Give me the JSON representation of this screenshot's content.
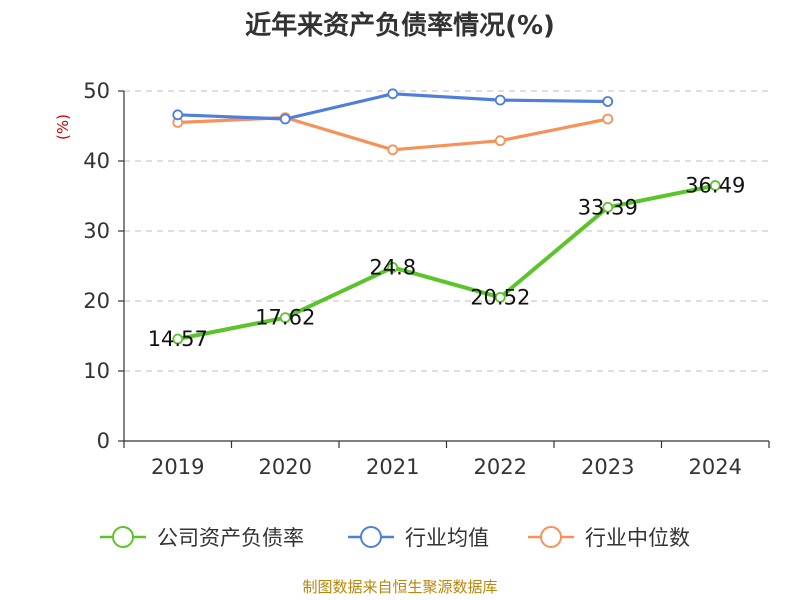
{
  "chart_data": {
    "type": "line",
    "title": "近年来资产负债率情况(%)",
    "ylabel": "(%)",
    "ylim": [
      0,
      50
    ],
    "yticks": [
      0,
      10,
      20,
      30,
      40,
      50
    ],
    "grid": true,
    "legend_position": "bottom",
    "categories": [
      "2019",
      "2020",
      "2021",
      "2022",
      "2023",
      "2024"
    ],
    "series": [
      {
        "name": "公司资产负债率",
        "color": "#5cc42b",
        "values": [
          14.57,
          17.62,
          24.8,
          20.52,
          33.39,
          36.49
        ],
        "show_labels": true
      },
      {
        "name": "行业均值",
        "color": "#4f7fdc",
        "values": [
          46.6,
          46.0,
          49.6,
          48.7,
          48.5,
          null
        ],
        "show_labels": false
      },
      {
        "name": "行业中位数",
        "color": "#f79158",
        "values": [
          45.5,
          46.2,
          41.6,
          42.9,
          46.0,
          null
        ],
        "show_labels": false
      }
    ],
    "source": "制图数据来自恒生聚源数据库"
  }
}
